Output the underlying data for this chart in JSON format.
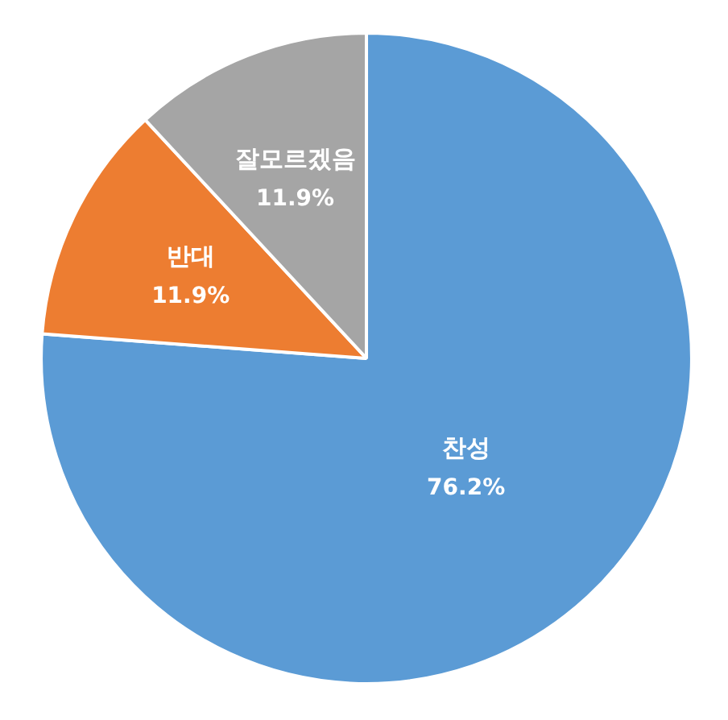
{
  "chart_data": {
    "type": "pie",
    "categories": [
      "찬성",
      "반대",
      "잘모르겠음"
    ],
    "values": [
      76.2,
      11.9,
      11.9
    ],
    "colors": [
      "#5b9bd5",
      "#ed7d31",
      "#a5a5a5"
    ],
    "value_labels": [
      "76.2%",
      "11.9%",
      "11.9%"
    ],
    "legend": false
  }
}
